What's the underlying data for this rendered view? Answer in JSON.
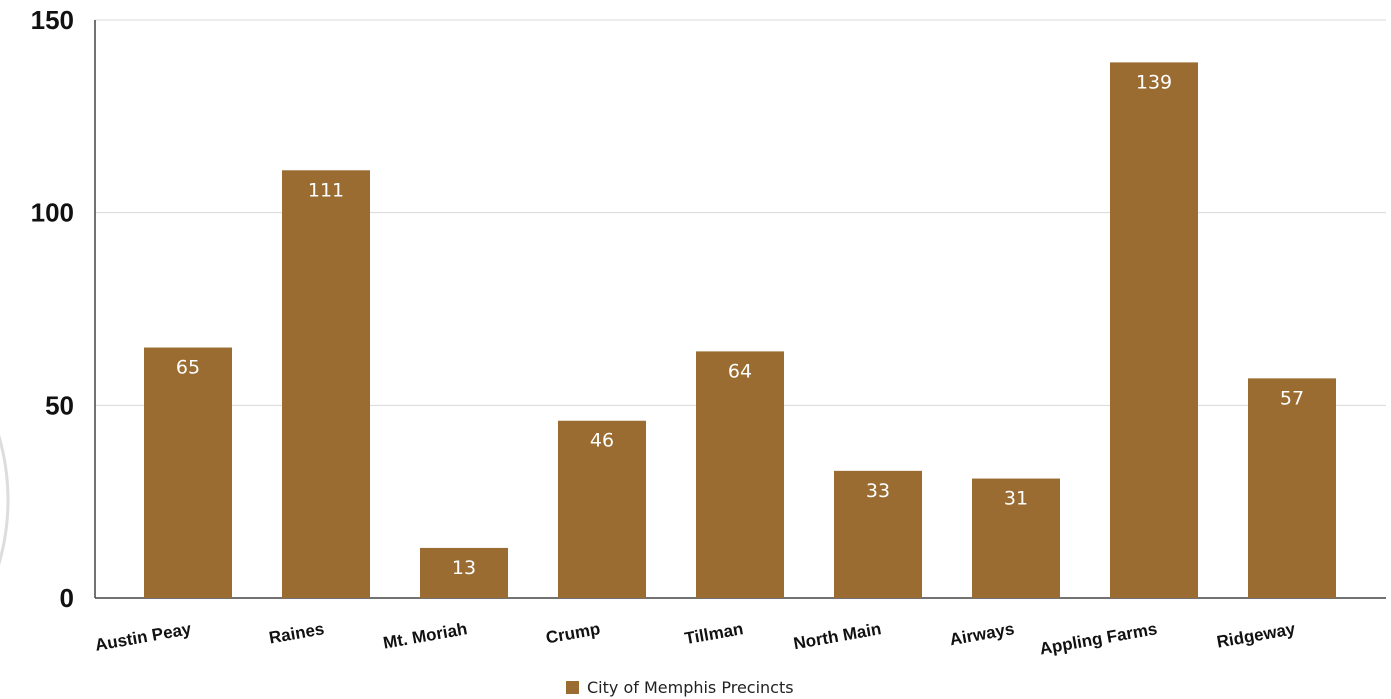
{
  "chart_data": {
    "type": "bar",
    "categories": [
      "Austin Peay",
      "Raines",
      "Mt. Moriah",
      "Crump",
      "Tillman",
      "North Main",
      "Airways",
      "Appling Farms",
      "Ridgeway"
    ],
    "series": [
      {
        "name": "City of Memphis Precincts",
        "values": [
          65,
          111,
          13,
          46,
          64,
          33,
          31,
          139,
          57
        ],
        "color": "#9A6C31"
      }
    ],
    "title": "",
    "xlabel": "",
    "ylabel": "",
    "ylim": [
      0,
      150
    ],
    "yticks": [
      "0",
      "50",
      "100",
      "150"
    ],
    "data_labels": [
      "65",
      "111",
      "13",
      "46",
      "64",
      "33",
      "31",
      "139",
      "57"
    ],
    "grid": true,
    "legend_position": "bottom-center",
    "colors": {
      "bar": "#9A6C31",
      "bar_label": "#FFFFFF",
      "grid": "#D9D9D9",
      "axis": "#444444",
      "decor_circle": "#DDDDDD"
    }
  }
}
